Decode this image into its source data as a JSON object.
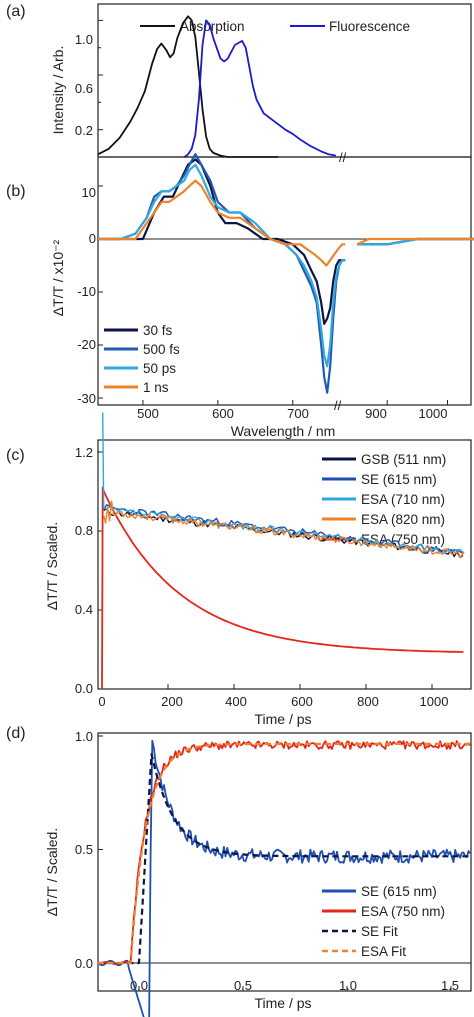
{
  "colors": {
    "absorption": "#111111",
    "fluorescence": "#1a1ad0",
    "t30fs": "#0c1445",
    "t500fs": "#1f5bb4",
    "t50ps": "#31a9de",
    "t1ns": "#f0822a",
    "gsb": "#0c1445",
    "se": "#1f4fb0",
    "esa710": "#2ea6dc",
    "esa820": "#f0822a",
    "esa750": "#e4261c",
    "sefit": "#0c1445",
    "esafit": "#f0822a"
  },
  "chart_data": [
    {
      "panel": "(a)",
      "type": "line",
      "ylabel": "Intensity / Arb.",
      "yticks": [
        "0.2",
        "0.6",
        "1.0"
      ],
      "ylim": [
        0.0,
        1.12
      ],
      "xlim": [
        440,
        1080
      ],
      "axis_break_after": 780,
      "legend": [
        "Absorption",
        "Fluorescence"
      ],
      "series": [
        {
          "name": "Absorption",
          "color_key": "absorption",
          "x": [
            440,
            455,
            470,
            485,
            495,
            505,
            515,
            522,
            528,
            535,
            540,
            545,
            550,
            558,
            565,
            570,
            575,
            580,
            585,
            590,
            595,
            600,
            610,
            620,
            640,
            660,
            690
          ],
          "y": [
            0.02,
            0.06,
            0.14,
            0.26,
            0.36,
            0.48,
            0.68,
            0.79,
            0.83,
            0.78,
            0.73,
            0.76,
            0.87,
            0.98,
            1.03,
            1.0,
            0.88,
            0.62,
            0.35,
            0.15,
            0.06,
            0.03,
            0.01,
            0.0,
            0.0,
            0.0,
            0.0
          ]
        },
        {
          "name": "Fluorescence",
          "color_key": "fluorescence",
          "x": [
            560,
            565,
            570,
            575,
            580,
            585,
            590,
            595,
            600,
            610,
            615,
            620,
            630,
            640,
            645,
            650,
            655,
            660,
            670,
            680,
            690,
            700,
            710,
            720,
            735,
            750,
            760,
            770
          ],
          "y": [
            0.0,
            0.02,
            0.06,
            0.16,
            0.42,
            0.82,
            1.0,
            0.97,
            0.87,
            0.72,
            0.7,
            0.72,
            0.82,
            0.85,
            0.8,
            0.66,
            0.52,
            0.42,
            0.32,
            0.28,
            0.24,
            0.2,
            0.17,
            0.13,
            0.08,
            0.04,
            0.02,
            0.01
          ]
        }
      ]
    },
    {
      "panel": "(b)",
      "type": "line",
      "ylabel": "ΔT/T / x10⁻²",
      "xlabel": "Wavelength / nm",
      "yticks": [
        "10",
        "0",
        "-10",
        "-20",
        "-30"
      ],
      "ylim": [
        -31,
        18
      ],
      "xlim": [
        440,
        1080
      ],
      "axis_break_after": 770,
      "xticks": [
        "500",
        "600",
        "700",
        "900",
        "1000"
      ],
      "legend": [
        "30 fs",
        "500 fs",
        "50 ps",
        "1 ns"
      ],
      "series": [
        {
          "name": "30 fs",
          "color_key": "t30fs",
          "x": [
            440,
            480,
            500,
            515,
            528,
            540,
            550,
            560,
            570,
            578,
            590,
            600,
            610,
            625,
            640,
            660,
            680,
            700,
            715,
            725,
            732,
            738,
            742,
            746,
            750,
            754,
            758,
            762,
            766,
            770,
            850,
            870,
            900,
            950,
            1000,
            1050,
            1080
          ],
          "y": [
            0,
            0,
            0,
            5,
            8,
            8,
            11,
            14,
            15,
            14,
            10,
            5,
            3,
            3,
            2,
            0,
            0,
            -1,
            -3,
            -6,
            -8,
            -12,
            -16,
            -15,
            -13,
            -8,
            -5,
            -4,
            -4,
            -4,
            -1,
            -1,
            -1,
            0,
            0,
            0,
            0
          ]
        },
        {
          "name": "500 fs",
          "color_key": "t500fs",
          "x": [
            440,
            470,
            490,
            505,
            515,
            525,
            535,
            545,
            555,
            562,
            570,
            578,
            590,
            600,
            615,
            630,
            650,
            670,
            690,
            705,
            715,
            725,
            732,
            738,
            742,
            746,
            750,
            754,
            758,
            762,
            766,
            770,
            850,
            870,
            900,
            950,
            1000,
            1050,
            1080
          ],
          "y": [
            0,
            0,
            1,
            4,
            8,
            9,
            9,
            10,
            12,
            14,
            16,
            14,
            11,
            7,
            5,
            5,
            2,
            0,
            -1,
            -3,
            -6,
            -9,
            -12,
            -20,
            -26,
            -29,
            -24,
            -15,
            -8,
            -5,
            -4,
            -4,
            -1,
            -1,
            -1,
            0,
            0,
            0,
            0
          ]
        },
        {
          "name": "50 ps",
          "color_key": "t50ps",
          "x": [
            440,
            470,
            490,
            505,
            515,
            525,
            535,
            545,
            555,
            562,
            570,
            578,
            590,
            600,
            615,
            630,
            650,
            670,
            690,
            705,
            715,
            725,
            732,
            738,
            742,
            746,
            750,
            754,
            758,
            762,
            766,
            770,
            850,
            870,
            900,
            950,
            1000,
            1050,
            1080
          ],
          "y": [
            0,
            0,
            1,
            4,
            7,
            9,
            9,
            10,
            11,
            13,
            14,
            12,
            8,
            6,
            5,
            5,
            3,
            0,
            -1,
            -3,
            -5,
            -8,
            -11,
            -17,
            -22,
            -24,
            -20,
            -12,
            -7,
            -5,
            -4,
            -4,
            -1,
            -1,
            -1,
            0,
            0,
            0,
            0
          ]
        },
        {
          "name": "1 ns",
          "color_key": "t1ns",
          "x": [
            440,
            470,
            490,
            505,
            515,
            525,
            535,
            545,
            555,
            562,
            570,
            578,
            590,
            600,
            615,
            630,
            650,
            670,
            690,
            700,
            710,
            720,
            730,
            738,
            745,
            750,
            755,
            760,
            766,
            770,
            850,
            870,
            900,
            950,
            1000,
            1050,
            1080
          ],
          "y": [
            0,
            0,
            0,
            3,
            5,
            7,
            7,
            8,
            9,
            10,
            11,
            10,
            7,
            5,
            4,
            4,
            2,
            0,
            -1,
            -1,
            -1,
            -2,
            -3,
            -4,
            -5,
            -4,
            -3,
            -2,
            -1,
            -1,
            -1,
            0,
            0,
            0,
            0,
            0,
            0
          ]
        }
      ]
    },
    {
      "panel": "(c)",
      "type": "line",
      "ylabel": "ΔT/T / Scaled.",
      "xlabel": "Time / ps",
      "xticks": [
        "0",
        "200",
        "400",
        "600",
        "800",
        "1000"
      ],
      "yticks": [
        "0.0",
        "0.4",
        "0.8",
        "1.2"
      ],
      "xlim": [
        -10,
        1100
      ],
      "ylim": [
        0.0,
        1.42
      ],
      "legend": [
        "GSB (511 nm)",
        "SE (615 nm)",
        "ESA (710 nm)",
        "ESA (820 nm)",
        "ESA (750 nm)"
      ],
      "series": [
        {
          "name": "GSB (511 nm)",
          "color_key": "gsb",
          "model": "linear",
          "y0": 0.9,
          "y1": 0.68
        },
        {
          "name": "SE (615 nm)",
          "color_key": "se",
          "model": "linear",
          "y0": 0.92,
          "y1": 0.69
        },
        {
          "name": "ESA (710 nm)",
          "color_key": "esa710",
          "model": "linear",
          "y0": 0.91,
          "y1": 0.69
        },
        {
          "name": "ESA (820 nm)",
          "color_key": "esa820",
          "model": "linear",
          "y0": 0.9,
          "y1": 0.68
        },
        {
          "name": "ESA (750 nm)",
          "color_key": "esa750",
          "model": "exp",
          "y0": 1.02,
          "yinf": 0.18,
          "tau": 230
        }
      ]
    },
    {
      "panel": "(d)",
      "type": "line",
      "ylabel": "ΔT/T / Scaled.",
      "xlabel": "Time / ps",
      "xticks": [
        "0.0",
        "0.5",
        "1.0",
        "1.5"
      ],
      "yticks": [
        "0.0",
        "0.5",
        "1.0"
      ],
      "xlim": [
        -0.2,
        1.6
      ],
      "ylim": [
        -0.05,
        1.0
      ],
      "legend": [
        "SE (615 nm)",
        "ESA (750 nm)",
        "SE Fit",
        "ESA Fit"
      ],
      "series": [
        {
          "name": "SE (615 nm)",
          "color_key": "se",
          "model": "se"
        },
        {
          "name": "ESA (750 nm)",
          "color_key": "esa750",
          "model": "esa"
        },
        {
          "name": "SE Fit",
          "color_key": "sefit",
          "model": "sefit",
          "dashed": true
        },
        {
          "name": "ESA Fit",
          "color_key": "esafit",
          "model": "esafit",
          "dashed": true
        }
      ]
    }
  ],
  "labels": {
    "a": "(a)",
    "b": "(b)",
    "c": "(c)",
    "d": "(d)",
    "axis_break": "//"
  }
}
